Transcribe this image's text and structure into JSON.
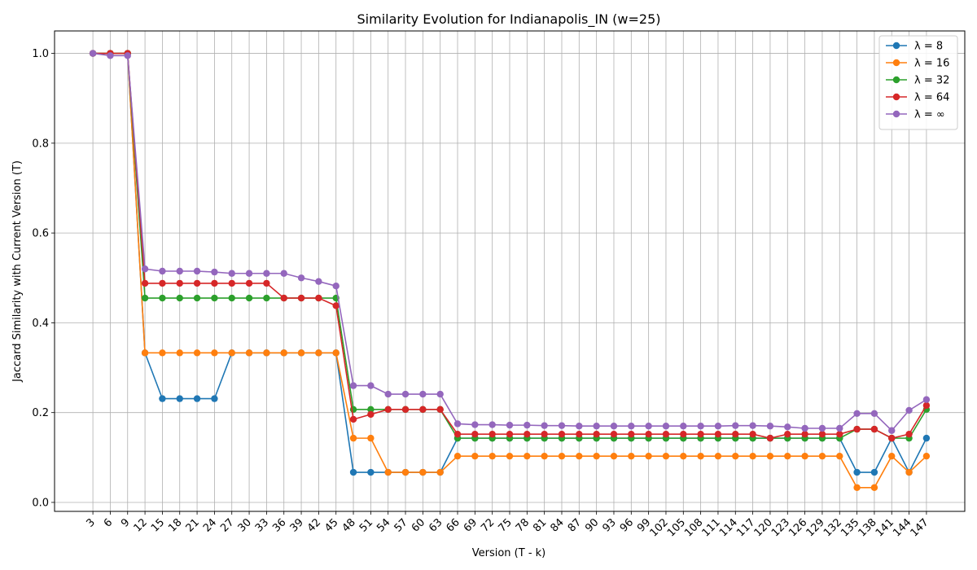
{
  "chart_data": {
    "type": "line",
    "title": "Similarity Evolution for Indianapolis_IN (w=25)",
    "xlabel": "Version (T - k)",
    "ylabel": "Jaccard Similarity with Current Version (T)",
    "ylim": [
      -0.02,
      1.05
    ],
    "yticks": [
      0.0,
      0.2,
      0.4,
      0.6,
      0.8,
      1.0
    ],
    "ytick_labels": [
      "0.0",
      "0.2",
      "0.4",
      "0.6",
      "0.8",
      "1.0"
    ],
    "grid": true,
    "legend_position": "top-right",
    "x": [
      3,
      6,
      9,
      12,
      15,
      18,
      21,
      24,
      27,
      30,
      33,
      36,
      39,
      42,
      45,
      48,
      51,
      54,
      57,
      60,
      63,
      66,
      69,
      72,
      75,
      78,
      81,
      84,
      87,
      90,
      93,
      96,
      99,
      102,
      105,
      108,
      111,
      114,
      117,
      120,
      123,
      126,
      129,
      132,
      135,
      138,
      141,
      144,
      147
    ],
    "series": [
      {
        "name": "λ = 8",
        "color": "#1f77b4",
        "values": [
          1.0,
          1.0,
          1.0,
          0.333,
          0.231,
          0.231,
          0.231,
          0.231,
          0.333,
          0.333,
          0.333,
          0.333,
          0.333,
          0.333,
          0.333,
          0.067,
          0.067,
          0.067,
          0.067,
          0.067,
          0.067,
          0.143,
          0.143,
          0.143,
          0.143,
          0.143,
          0.143,
          0.143,
          0.143,
          0.143,
          0.143,
          0.143,
          0.143,
          0.143,
          0.143,
          0.143,
          0.143,
          0.143,
          0.143,
          0.143,
          0.143,
          0.143,
          0.143,
          0.143,
          0.067,
          0.067,
          0.143,
          0.067,
          0.143
        ]
      },
      {
        "name": "λ = 16",
        "color": "#ff7f0e",
        "values": [
          1.0,
          1.0,
          1.0,
          0.333,
          0.333,
          0.333,
          0.333,
          0.333,
          0.333,
          0.333,
          0.333,
          0.333,
          0.333,
          0.333,
          0.333,
          0.143,
          0.143,
          0.067,
          0.067,
          0.067,
          0.067,
          0.103,
          0.103,
          0.103,
          0.103,
          0.103,
          0.103,
          0.103,
          0.103,
          0.103,
          0.103,
          0.103,
          0.103,
          0.103,
          0.103,
          0.103,
          0.103,
          0.103,
          0.103,
          0.103,
          0.103,
          0.103,
          0.103,
          0.103,
          0.033,
          0.033,
          0.103,
          0.067,
          0.103
        ]
      },
      {
        "name": "λ = 32",
        "color": "#2ca02c",
        "values": [
          1.0,
          1.0,
          1.0,
          0.455,
          0.455,
          0.455,
          0.455,
          0.455,
          0.455,
          0.455,
          0.455,
          0.455,
          0.455,
          0.455,
          0.455,
          0.207,
          0.207,
          0.207,
          0.207,
          0.207,
          0.207,
          0.143,
          0.143,
          0.143,
          0.143,
          0.143,
          0.143,
          0.143,
          0.143,
          0.143,
          0.143,
          0.143,
          0.143,
          0.143,
          0.143,
          0.143,
          0.143,
          0.143,
          0.143,
          0.143,
          0.143,
          0.143,
          0.143,
          0.143,
          0.163,
          0.163,
          0.143,
          0.143,
          0.207
        ]
      },
      {
        "name": "λ = 64",
        "color": "#d62728",
        "values": [
          1.0,
          1.0,
          1.0,
          0.488,
          0.488,
          0.488,
          0.488,
          0.488,
          0.488,
          0.488,
          0.488,
          0.455,
          0.455,
          0.455,
          0.438,
          0.185,
          0.196,
          0.207,
          0.207,
          0.207,
          0.207,
          0.152,
          0.152,
          0.152,
          0.152,
          0.152,
          0.152,
          0.152,
          0.152,
          0.152,
          0.152,
          0.152,
          0.152,
          0.152,
          0.152,
          0.152,
          0.152,
          0.152,
          0.152,
          0.143,
          0.152,
          0.152,
          0.152,
          0.152,
          0.163,
          0.163,
          0.143,
          0.152,
          0.216
        ]
      },
      {
        "name": "λ = ∞",
        "color": "#9467bd",
        "values": [
          1.0,
          0.995,
          0.995,
          0.52,
          0.515,
          0.515,
          0.515,
          0.513,
          0.51,
          0.51,
          0.51,
          0.51,
          0.5,
          0.492,
          0.482,
          0.26,
          0.26,
          0.241,
          0.241,
          0.241,
          0.241,
          0.175,
          0.173,
          0.173,
          0.172,
          0.172,
          0.171,
          0.171,
          0.17,
          0.17,
          0.17,
          0.17,
          0.17,
          0.17,
          0.17,
          0.17,
          0.17,
          0.171,
          0.171,
          0.17,
          0.168,
          0.165,
          0.165,
          0.165,
          0.198,
          0.198,
          0.16,
          0.205,
          0.229
        ]
      }
    ]
  }
}
